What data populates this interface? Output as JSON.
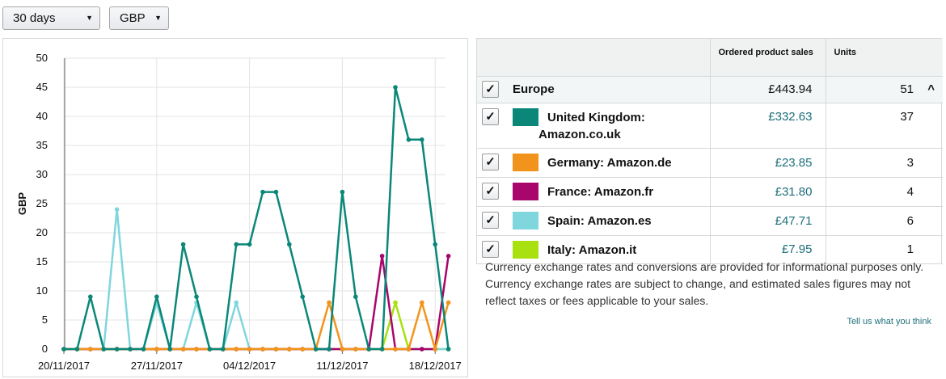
{
  "filters": {
    "range": "30 days",
    "currency": "GBP"
  },
  "chart_data": {
    "type": "line",
    "ylabel": "GBP",
    "xlabel": "",
    "title": "",
    "ylim": [
      0,
      50
    ],
    "y_ticks": [
      "0",
      "5",
      "10",
      "15",
      "20",
      "25",
      "30",
      "35",
      "40",
      "45",
      "50"
    ],
    "x_ticks": [
      "20/11/2017",
      "27/11/2017",
      "04/12/2017",
      "11/12/2017",
      "18/12/2017"
    ],
    "x": [
      "20/11/2017",
      "21/11/2017",
      "22/11/2017",
      "23/11/2017",
      "24/11/2017",
      "25/11/2017",
      "26/11/2017",
      "27/11/2017",
      "28/11/2017",
      "29/11/2017",
      "30/11/2017",
      "01/12/2017",
      "02/12/2017",
      "03/12/2017",
      "04/12/2017",
      "05/12/2017",
      "06/12/2017",
      "07/12/2017",
      "08/12/2017",
      "09/12/2017",
      "10/12/2017",
      "11/12/2017",
      "12/12/2017",
      "13/12/2017",
      "14/12/2017",
      "15/12/2017",
      "16/12/2017",
      "17/12/2017",
      "18/12/2017",
      "19/12/2017"
    ],
    "grid": true,
    "series": [
      {
        "color": "#0a8778",
        "values": [
          0,
          0,
          9,
          0,
          0,
          0,
          0,
          9,
          0,
          18,
          9,
          0,
          0,
          18,
          18,
          27,
          27,
          18,
          9,
          0,
          0,
          27,
          9,
          0,
          0,
          45,
          36,
          36,
          18,
          0
        ]
      },
      {
        "color": "#f2941b",
        "values": [
          0,
          0,
          0,
          0,
          0,
          0,
          0,
          0,
          0,
          0,
          0,
          0,
          0,
          0,
          0,
          0,
          0,
          0,
          0,
          0,
          8,
          0,
          0,
          0,
          0,
          0,
          0,
          8,
          0,
          8
        ]
      },
      {
        "color": "#a8056d",
        "values": [
          0,
          0,
          0,
          0,
          0,
          0,
          0,
          0,
          0,
          0,
          0,
          0,
          0,
          0,
          0,
          0,
          0,
          0,
          0,
          0,
          0,
          0,
          0,
          0,
          16,
          0,
          0,
          0,
          0,
          16
        ]
      },
      {
        "color": "#80d6dd",
        "values": [
          0,
          0,
          0,
          0,
          24,
          0,
          0,
          8,
          0,
          0,
          8,
          0,
          0,
          8,
          0,
          0,
          0,
          0,
          0,
          0,
          0,
          0,
          0,
          0,
          0,
          0,
          0,
          0,
          0,
          0
        ]
      },
      {
        "color": "#a8e010",
        "values": [
          0,
          0,
          0,
          0,
          0,
          0,
          0,
          0,
          0,
          0,
          0,
          0,
          0,
          0,
          0,
          0,
          0,
          0,
          0,
          0,
          0,
          0,
          0,
          0,
          0,
          8,
          0,
          0,
          0,
          0
        ]
      }
    ]
  },
  "table": {
    "headers": {
      "region": "",
      "sales": "Ordered product sales",
      "units": "Units"
    },
    "region": {
      "name": "Europe",
      "sales": "£443.94",
      "units": "51",
      "checked": "✓",
      "collapse_icon": "chevron-up"
    },
    "rows": [
      {
        "name": "United Kingdom: Amazon.co.uk",
        "sales": "£332.63",
        "units": "37",
        "color": "#0a8778",
        "checked": "✓"
      },
      {
        "name": "Germany: Amazon.de",
        "sales": "£23.85",
        "units": "3",
        "color": "#f2941b",
        "checked": "✓"
      },
      {
        "name": "France: Amazon.fr",
        "sales": "£31.80",
        "units": "4",
        "color": "#a8056d",
        "checked": "✓"
      },
      {
        "name": "Spain: Amazon.es",
        "sales": "£47.71",
        "units": "6",
        "color": "#80d6dd",
        "checked": "✓"
      },
      {
        "name": "Italy: Amazon.it",
        "sales": "£7.95",
        "units": "1",
        "color": "#a8e010",
        "checked": "✓"
      }
    ]
  },
  "note": "Currency exchange rates and conversions are provided for informational purposes only. Currency exchange rates are subject to change, and estimated sales figures may not reflect taxes or fees applicable to your sales.",
  "feedback_link": "Tell us what you think"
}
